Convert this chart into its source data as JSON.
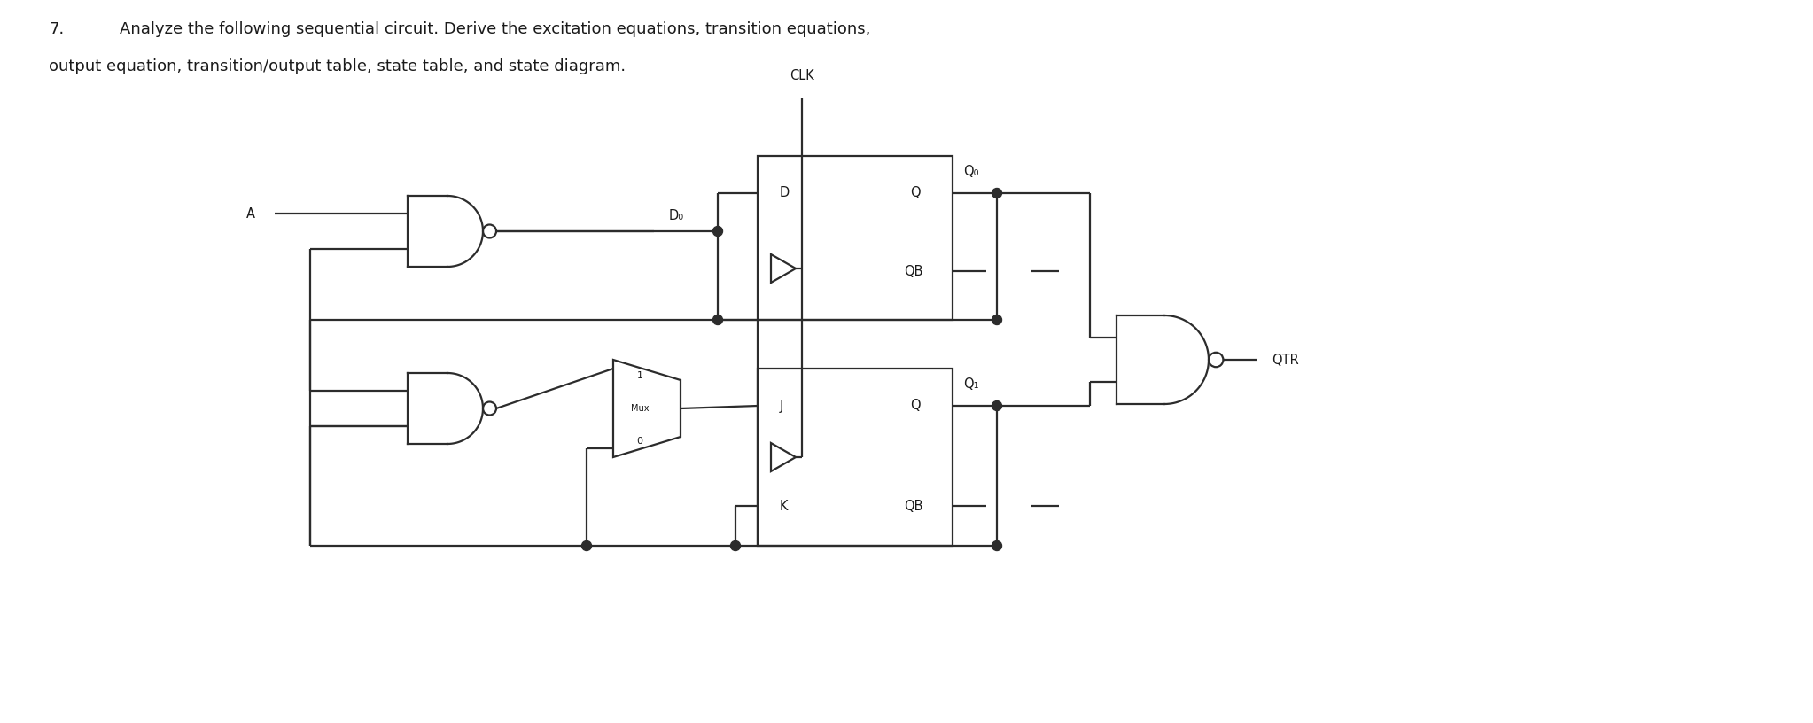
{
  "bg_color": "#ffffff",
  "line_color": "#2c2c2c",
  "text_color": "#1a1a1a",
  "title_fontsize": 13.0,
  "label_fontsize": 10.5,
  "small_fontsize": 8.5,
  "problem_number": "7.",
  "title_line1": "Analyze the following sequential circuit. Derive the excitation equations, transition equations,",
  "title_line2": "output equation, transition/output table, state table, and state diagram."
}
